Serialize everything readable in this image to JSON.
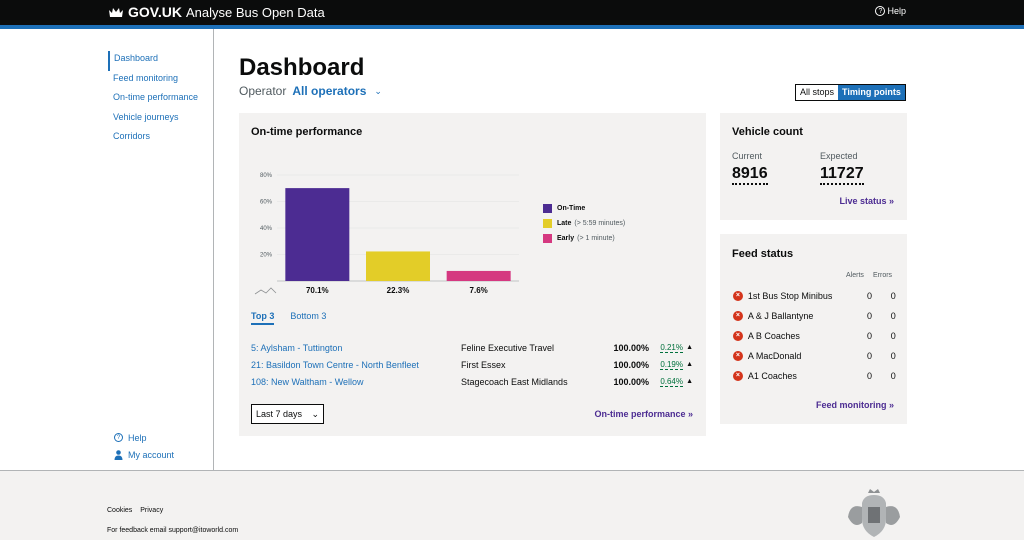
{
  "header": {
    "brand": "GOV.UK",
    "service": "Analyse Bus Open Data",
    "help": "Help",
    "help_icon": "?"
  },
  "sidebar": {
    "items": [
      {
        "label": "Dashboard"
      },
      {
        "label": "Feed monitoring"
      },
      {
        "label": "On-time performance"
      },
      {
        "label": "Vehicle journeys"
      },
      {
        "label": "Corridors"
      }
    ],
    "help": "Help",
    "help_icon": "?",
    "account": "My account"
  },
  "main": {
    "title": "Dashboard",
    "operator_label": "Operator",
    "operator_value": "All operators",
    "toggle": {
      "all_stops": "All stops",
      "timing_points": "Timing points"
    }
  },
  "otp": {
    "title": "On-time performance",
    "tabs": {
      "top": "Top 3",
      "bottom": "Bottom 3"
    },
    "routes": [
      {
        "name": "5: Aylsham - Tuttington",
        "operator": "Feline Executive Travel",
        "pct": "100.00%",
        "change": "0.21%"
      },
      {
        "name": "21: Basildon Town Centre - North Benfleet",
        "operator": "First Essex",
        "pct": "100.00%",
        "change": "0.19%"
      },
      {
        "name": "108: New Waltham - Wellow",
        "operator": "Stagecoach East Midlands",
        "pct": "100.00%",
        "change": "0.64%"
      }
    ],
    "range": "Last 7 days",
    "link": "On-time performance »"
  },
  "chart_data": {
    "type": "bar",
    "categories": [
      "On-Time",
      "Late",
      "Early"
    ],
    "values": [
      70.1,
      22.3,
      7.6
    ],
    "value_labels": [
      "70.1%",
      "22.3%",
      "7.6%"
    ],
    "colors": [
      "#4c2c92",
      "#e3cd28",
      "#d53880"
    ],
    "y_ticks": [
      "20%",
      "40%",
      "60%",
      "80%"
    ],
    "ylim": [
      0,
      80
    ],
    "legend": [
      {
        "name": "On-Time",
        "note": ""
      },
      {
        "name": "Late",
        "note": "(> 5:59 minutes)"
      },
      {
        "name": "Early",
        "note": "(> 1 minute)"
      }
    ]
  },
  "vehicle_count": {
    "title": "Vehicle count",
    "current_label": "Current",
    "current": "8916",
    "expected_label": "Expected",
    "expected": "11727",
    "link": "Live status »"
  },
  "feed_status": {
    "title": "Feed status",
    "alerts_label": "Alerts",
    "errors_label": "Errors",
    "rows": [
      {
        "name": "1st Bus Stop Minibus",
        "alerts": "0",
        "errors": "0"
      },
      {
        "name": "A & J Ballantyne",
        "alerts": "0",
        "errors": "0"
      },
      {
        "name": "A B Coaches",
        "alerts": "0",
        "errors": "0"
      },
      {
        "name": "A MacDonald",
        "alerts": "0",
        "errors": "0"
      },
      {
        "name": "A1 Coaches",
        "alerts": "0",
        "errors": "0"
      }
    ],
    "link": "Feed monitoring »"
  },
  "footer": {
    "cookies": "Cookies",
    "privacy": "Privacy",
    "feedback": "For feedback email",
    "email": "support@itoworld.com"
  }
}
